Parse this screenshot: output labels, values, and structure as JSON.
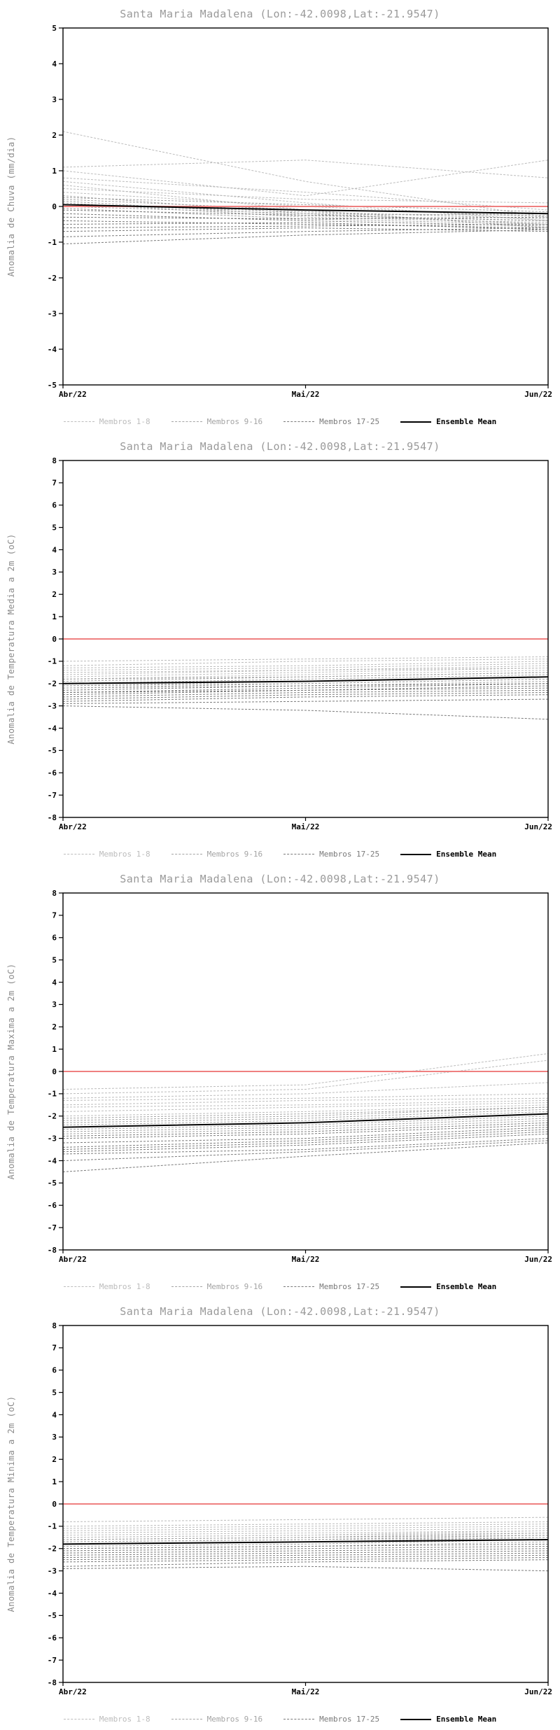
{
  "legend": {
    "items": [
      {
        "label": "Membros 1-8",
        "style": "dashed",
        "color": "#bcbcbc",
        "member_range": [
          1,
          8
        ]
      },
      {
        "label": "Membros 9-16",
        "style": "dashed",
        "color": "#a4a4a4",
        "member_range": [
          9,
          16
        ]
      },
      {
        "label": "Membros 17-25",
        "style": "dashed",
        "color": "#7a7a7a",
        "member_range": [
          17,
          25
        ]
      },
      {
        "label": "Ensemble Mean",
        "style": "solid",
        "color": "#000000",
        "member_range": null
      }
    ]
  },
  "chart_data": [
    {
      "type": "line",
      "title": "Santa Maria Madalena (Lon:-42.0098,Lat:-21.9547)",
      "ylabel": "Anomalia de Chuva (mm/dia)",
      "ylim": [
        -5,
        5
      ],
      "ytick_step": 1,
      "x": [
        0,
        0.5,
        1
      ],
      "x_tick_labels": [
        "Abr/22",
        "Mai/22",
        "Jun/22"
      ],
      "zero_line": {
        "value": 0,
        "color": "#ef8080"
      },
      "grid": false,
      "members": [
        [
          2.1,
          0.7,
          -0.3
        ],
        [
          1.1,
          1.3,
          0.8
        ],
        [
          1.0,
          0.3,
          1.3
        ],
        [
          0.8,
          0.4,
          -0.1
        ],
        [
          0.7,
          0.1,
          -0.4
        ],
        [
          0.6,
          -0.1,
          -0.2
        ],
        [
          0.5,
          0.2,
          0.1
        ],
        [
          0.4,
          0.0,
          -0.3
        ],
        [
          0.3,
          -0.2,
          -0.5
        ],
        [
          0.25,
          0.05,
          -0.15
        ],
        [
          0.2,
          -0.1,
          -0.6
        ],
        [
          0.15,
          -0.25,
          -0.2
        ],
        [
          0.1,
          -0.3,
          -0.45
        ],
        [
          0.05,
          -0.15,
          -0.35
        ],
        [
          0.0,
          -0.2,
          -0.25
        ],
        [
          -0.05,
          -0.35,
          -0.5
        ],
        [
          -0.1,
          -0.25,
          -0.4
        ],
        [
          -0.2,
          -0.4,
          -0.55
        ],
        [
          -0.3,
          -0.35,
          -0.3
        ],
        [
          -0.4,
          -0.5,
          -0.6
        ],
        [
          -0.5,
          -0.45,
          -0.65
        ],
        [
          -0.6,
          -0.55,
          -0.5
        ],
        [
          -0.7,
          -0.6,
          -0.7
        ],
        [
          -0.85,
          -0.7,
          -0.6
        ],
        [
          -1.05,
          -0.8,
          -0.65
        ]
      ],
      "ensemble_mean": [
        0.05,
        -0.1,
        -0.2
      ]
    },
    {
      "type": "line",
      "title": "Santa Maria Madalena (Lon:-42.0098,Lat:-21.9547)",
      "ylabel": "Anomalia de Temperatura Media a 2m (oC)",
      "ylim": [
        -8,
        8
      ],
      "ytick_step": 1,
      "x": [
        0,
        0.5,
        1
      ],
      "x_tick_labels": [
        "Abr/22",
        "Mai/22",
        "Jun/22"
      ],
      "zero_line": {
        "value": 0,
        "color": "#ef8080"
      },
      "grid": false,
      "members": [
        [
          -1.0,
          -0.9,
          -0.8
        ],
        [
          -1.2,
          -1.0,
          -0.9
        ],
        [
          -1.3,
          -1.2,
          -1.0
        ],
        [
          -1.4,
          -1.3,
          -1.1
        ],
        [
          -1.5,
          -1.4,
          -1.2
        ],
        [
          -1.6,
          -1.4,
          -1.3
        ],
        [
          -1.7,
          -1.5,
          -1.3
        ],
        [
          -1.8,
          -1.6,
          -1.4
        ],
        [
          -1.8,
          -1.7,
          -1.5
        ],
        [
          -1.9,
          -1.7,
          -1.5
        ],
        [
          -2.0,
          -1.8,
          -1.6
        ],
        [
          -2.0,
          -1.9,
          -1.7
        ],
        [
          -2.1,
          -1.9,
          -1.7
        ],
        [
          -2.1,
          -2.0,
          -1.8
        ],
        [
          -2.2,
          -2.0,
          -1.8
        ],
        [
          -2.2,
          -2.1,
          -1.9
        ],
        [
          -2.3,
          -2.1,
          -2.0
        ],
        [
          -2.4,
          -2.2,
          -2.0
        ],
        [
          -2.4,
          -2.3,
          -2.1
        ],
        [
          -2.5,
          -2.3,
          -2.2
        ],
        [
          -2.6,
          -2.4,
          -2.3
        ],
        [
          -2.7,
          -2.5,
          -2.4
        ],
        [
          -2.8,
          -2.6,
          -2.5
        ],
        [
          -2.9,
          -2.8,
          -2.7
        ],
        [
          -3.0,
          -3.2,
          -3.6
        ]
      ],
      "ensemble_mean": [
        -2.0,
        -1.9,
        -1.7
      ]
    },
    {
      "type": "line",
      "title": "Santa Maria Madalena (Lon:-42.0098,Lat:-21.9547)",
      "ylabel": "Anomalia de Temperatura Maxima a 2m (oC)",
      "ylim": [
        -8,
        8
      ],
      "ytick_step": 1,
      "x": [
        0,
        0.5,
        1
      ],
      "x_tick_labels": [
        "Abr/22",
        "Mai/22",
        "Jun/22"
      ],
      "zero_line": {
        "value": 0,
        "color": "#ef8080"
      },
      "grid": false,
      "members": [
        [
          -0.8,
          -0.6,
          0.8
        ],
        [
          -1.0,
          -0.8,
          0.5
        ],
        [
          -1.2,
          -1.0,
          -0.5
        ],
        [
          -1.3,
          -1.2,
          -1.0
        ],
        [
          -1.5,
          -1.3,
          -1.2
        ],
        [
          -1.6,
          -1.5,
          -1.3
        ],
        [
          -1.8,
          -1.6,
          -1.4
        ],
        [
          -2.0,
          -1.8,
          -1.5
        ],
        [
          -2.1,
          -1.9,
          -1.6
        ],
        [
          -2.2,
          -2.0,
          -1.6
        ],
        [
          -2.3,
          -2.1,
          -1.7
        ],
        [
          -2.4,
          -2.2,
          -1.8
        ],
        [
          -2.5,
          -2.3,
          -1.9
        ],
        [
          -2.6,
          -2.4,
          -2.0
        ],
        [
          -2.7,
          -2.5,
          -2.1
        ],
        [
          -2.8,
          -2.6,
          -2.2
        ],
        [
          -2.9,
          -2.7,
          -2.3
        ],
        [
          -3.0,
          -2.8,
          -2.4
        ],
        [
          -3.2,
          -3.0,
          -2.5
        ],
        [
          -3.4,
          -3.1,
          -2.6
        ],
        [
          -3.5,
          -3.2,
          -2.7
        ],
        [
          -3.6,
          -3.3,
          -2.8
        ],
        [
          -3.7,
          -3.5,
          -3.0
        ],
        [
          -4.0,
          -3.6,
          -3.1
        ],
        [
          -4.5,
          -3.8,
          -3.2
        ]
      ],
      "ensemble_mean": [
        -2.5,
        -2.3,
        -1.9
      ]
    },
    {
      "type": "line",
      "title": "Santa Maria Madalena (Lon:-42.0098,Lat:-21.9547)",
      "ylabel": "Anomalia de Temperatura Minima a 2m (oC)",
      "ylim": [
        -8,
        8
      ],
      "ytick_step": 1,
      "x": [
        0,
        0.5,
        1
      ],
      "x_tick_labels": [
        "Abr/22",
        "Mai/22",
        "Jun/22"
      ],
      "zero_line": {
        "value": 0,
        "color": "#ef8080"
      },
      "grid": false,
      "members": [
        [
          -0.8,
          -0.7,
          -0.6
        ],
        [
          -1.0,
          -0.9,
          -0.8
        ],
        [
          -1.1,
          -1.0,
          -0.9
        ],
        [
          -1.2,
          -1.1,
          -1.0
        ],
        [
          -1.3,
          -1.2,
          -1.1
        ],
        [
          -1.4,
          -1.3,
          -1.2
        ],
        [
          -1.5,
          -1.4,
          -1.2
        ],
        [
          -1.5,
          -1.4,
          -1.3
        ],
        [
          -1.6,
          -1.5,
          -1.3
        ],
        [
          -1.6,
          -1.5,
          -1.4
        ],
        [
          -1.7,
          -1.6,
          -1.4
        ],
        [
          -1.7,
          -1.6,
          -1.5
        ],
        [
          -1.8,
          -1.7,
          -1.5
        ],
        [
          -1.8,
          -1.7,
          -1.6
        ],
        [
          -1.9,
          -1.8,
          -1.6
        ],
        [
          -2.0,
          -1.9,
          -1.7
        ],
        [
          -2.0,
          -1.9,
          -1.8
        ],
        [
          -2.1,
          -2.0,
          -1.9
        ],
        [
          -2.2,
          -2.1,
          -2.0
        ],
        [
          -2.3,
          -2.2,
          -2.1
        ],
        [
          -2.4,
          -2.3,
          -2.2
        ],
        [
          -2.5,
          -2.4,
          -2.3
        ],
        [
          -2.6,
          -2.5,
          -2.4
        ],
        [
          -2.8,
          -2.6,
          -2.5
        ],
        [
          -2.9,
          -2.8,
          -3.0
        ]
      ],
      "ensemble_mean": [
        -1.8,
        -1.7,
        -1.6
      ]
    }
  ]
}
